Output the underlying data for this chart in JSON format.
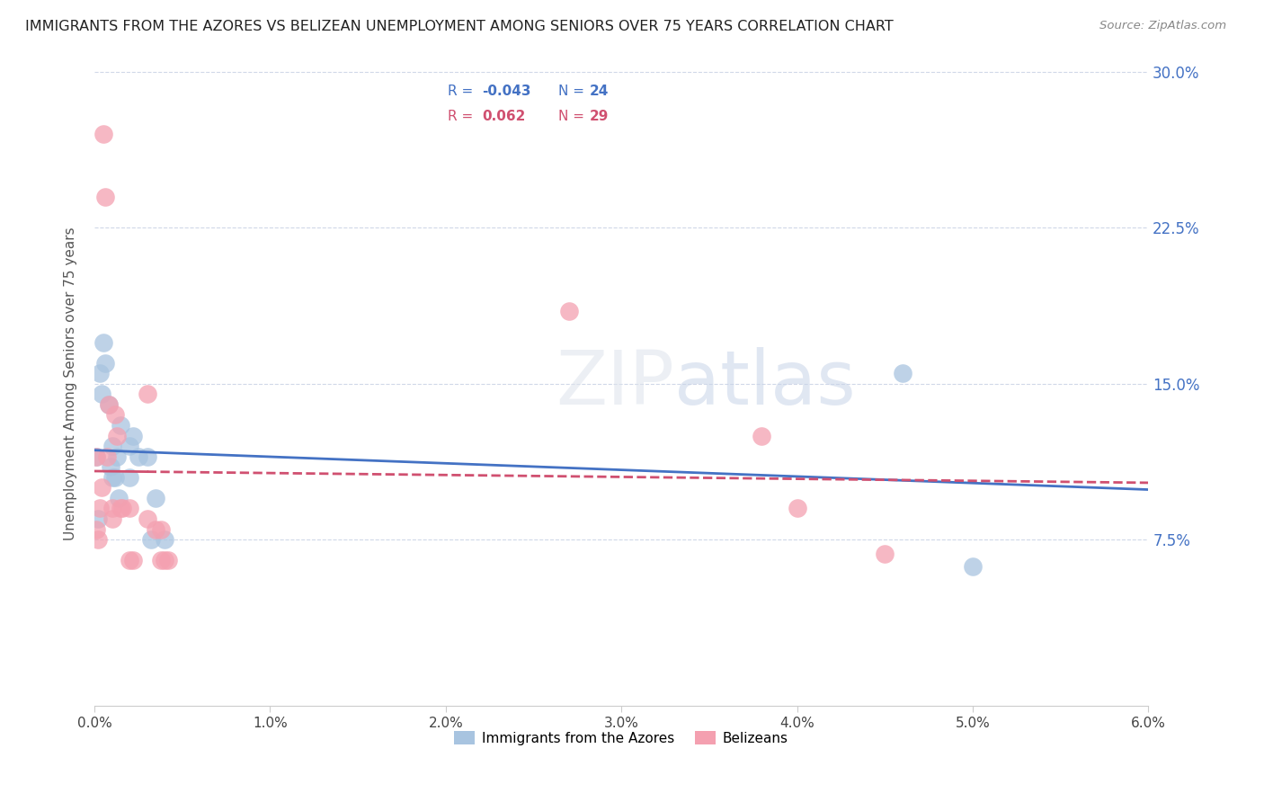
{
  "title": "IMMIGRANTS FROM THE AZORES VS BELIZEAN UNEMPLOYMENT AMONG SENIORS OVER 75 YEARS CORRELATION CHART",
  "source": "Source: ZipAtlas.com",
  "ylabel": "Unemployment Among Seniors over 75 years",
  "legend1_label": "Immigrants from the Azores",
  "legend2_label": "Belizeans",
  "R1": "-0.043",
  "N1": "24",
  "R2": "0.062",
  "N2": "29",
  "blue_color": "#a8c4e0",
  "pink_color": "#f4a0b0",
  "blue_line_color": "#4472c4",
  "pink_line_color": "#d05070",
  "background_color": "#ffffff",
  "grid_color": "#d0d8e8",
  "xlim": [
    0.0,
    0.06
  ],
  "ylim": [
    -0.005,
    0.305
  ],
  "azores_x": [
    0.0001,
    0.0002,
    0.0003,
    0.0004,
    0.0005,
    0.0006,
    0.0008,
    0.0009,
    0.001,
    0.001,
    0.0012,
    0.0013,
    0.0014,
    0.0015,
    0.002,
    0.002,
    0.0022,
    0.0025,
    0.003,
    0.0032,
    0.0035,
    0.004,
    0.046,
    0.05
  ],
  "azores_y": [
    0.115,
    0.085,
    0.155,
    0.145,
    0.17,
    0.16,
    0.14,
    0.11,
    0.105,
    0.12,
    0.105,
    0.115,
    0.095,
    0.13,
    0.12,
    0.105,
    0.125,
    0.115,
    0.115,
    0.075,
    0.095,
    0.075,
    0.155,
    0.062
  ],
  "belize_x": [
    0.0001,
    0.0001,
    0.0002,
    0.0003,
    0.0004,
    0.0005,
    0.0006,
    0.0007,
    0.0008,
    0.001,
    0.001,
    0.0012,
    0.0013,
    0.0015,
    0.0016,
    0.002,
    0.002,
    0.0022,
    0.003,
    0.003,
    0.0035,
    0.0038,
    0.0038,
    0.004,
    0.0042,
    0.027,
    0.038,
    0.04,
    0.045
  ],
  "belize_y": [
    0.115,
    0.08,
    0.075,
    0.09,
    0.1,
    0.27,
    0.24,
    0.115,
    0.14,
    0.085,
    0.09,
    0.135,
    0.125,
    0.09,
    0.09,
    0.065,
    0.09,
    0.065,
    0.085,
    0.145,
    0.08,
    0.08,
    0.065,
    0.065,
    0.065,
    0.185,
    0.125,
    0.09,
    0.068
  ]
}
